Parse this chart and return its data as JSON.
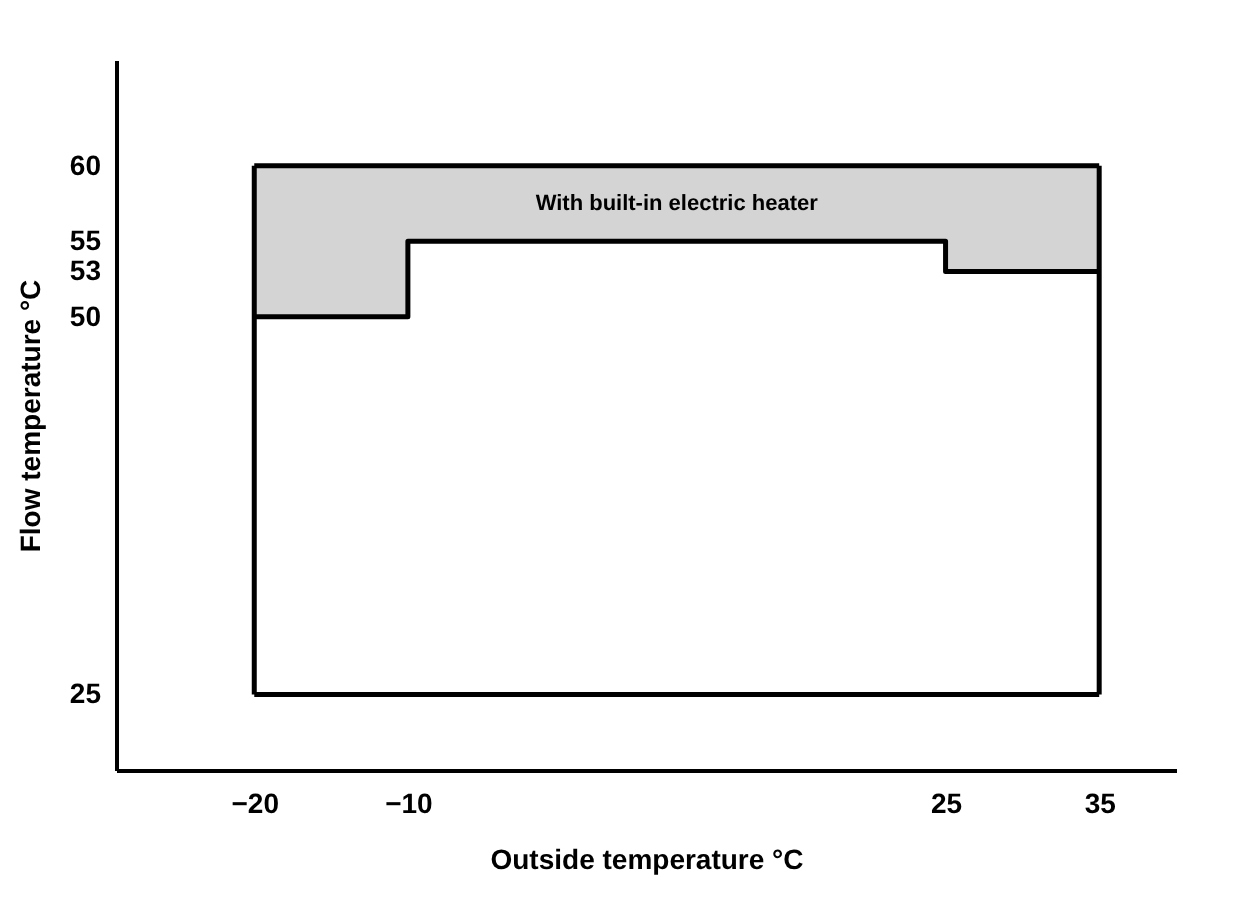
{
  "chart_data": {
    "type": "step",
    "xlabel": "Outside temperature °C",
    "ylabel": "Flow temperature °C",
    "xlim": [
      -29,
      40
    ],
    "ylim": [
      20,
      67
    ],
    "xticks": [
      -20,
      -10,
      25,
      35
    ],
    "yticks": [
      25,
      50,
      53,
      55,
      60
    ],
    "grid": false,
    "series": [
      {
        "color": "#000000",
        "x": [
          -20,
          -10,
          25,
          35
        ],
        "values": [
          50,
          55,
          53,
          53
        ],
        "lower": [
          50,
          55,
          53,
          53
        ],
        "upper": [
          60,
          60,
          60,
          60
        ]
      },
      {
        "type": "line",
        "color": "#000000",
        "x": [
          -20,
          35
        ],
        "values": [
          25,
          25
        ]
      },
      {
        "type": "line",
        "color": "#000000",
        "x": [
          -20,
          35
        ],
        "values": [
          60,
          60
        ]
      },
      {
        "type": "line",
        "color": "#000000",
        "x": [
          -20,
          -20
        ],
        "values": [
          25,
          60
        ]
      },
      {
        "type": "line",
        "color": "#000000",
        "x": [
          35,
          35
        ],
        "values": [
          25,
          60
        ]
      }
    ],
    "annotations": [
      "With built-in electric heater"
    ]
  }
}
